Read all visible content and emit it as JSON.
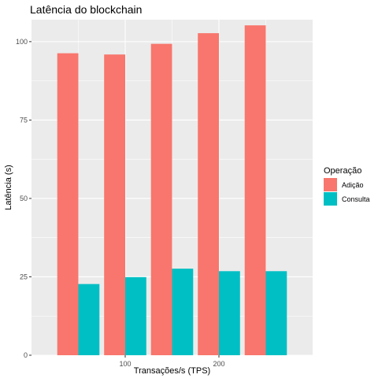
{
  "chart_data": {
    "type": "bar",
    "title": "Latência do blockchain",
    "xlabel": "Transações/s (TPS)",
    "ylabel": "Latência (s)",
    "x": [
      50,
      100,
      150,
      200,
      250
    ],
    "x_ticks": [
      100,
      200
    ],
    "xlim": [
      0,
      300
    ],
    "ylim": [
      0,
      107
    ],
    "y_ticks": [
      0,
      25,
      50,
      75,
      100
    ],
    "grid": true,
    "legend_position": "right",
    "legend_title": "Operação",
    "series": [
      {
        "name": "Adição",
        "color": "#F8766D",
        "values": [
          96.3,
          95.9,
          99.3,
          102.7,
          105.2
        ]
      },
      {
        "name": "Consulta",
        "color": "#00BFC4",
        "values": [
          22.7,
          24.9,
          27.6,
          26.8,
          26.8
        ]
      }
    ],
    "colors": {
      "panel": "#EBEBEB",
      "grid_major": "#FFFFFF",
      "text": "#000000",
      "tick_text": "#4D4D4D"
    }
  }
}
